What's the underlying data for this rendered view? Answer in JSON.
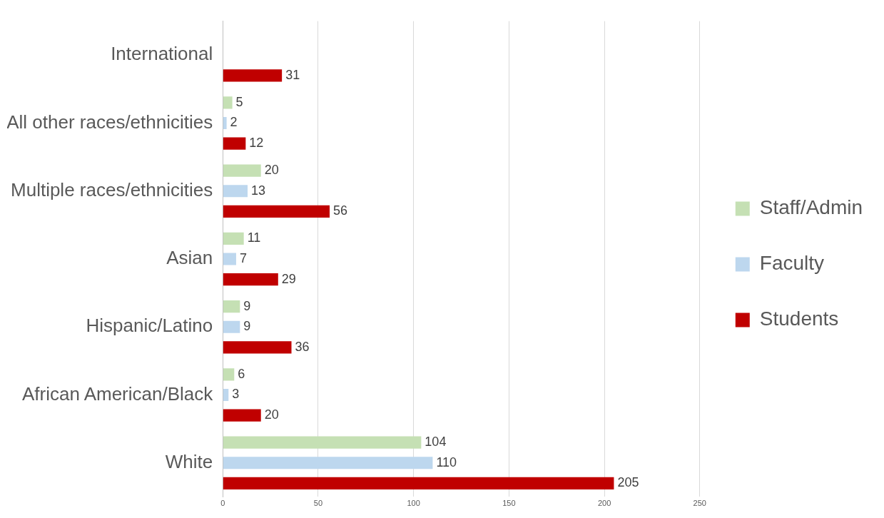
{
  "chart_data": {
    "type": "bar",
    "orientation": "horizontal",
    "categories": [
      "International",
      "All other races/ethnicities",
      "Multiple races/ethnicities",
      "Asian",
      "Hispanic/Latino",
      "African American/Black",
      "White"
    ],
    "series": [
      {
        "name": "Staff/Admin",
        "color": "#c5e0b4",
        "values": [
          null,
          5,
          20,
          11,
          9,
          6,
          104
        ]
      },
      {
        "name": "Faculty",
        "color": "#bdd7ee",
        "values": [
          null,
          2,
          13,
          7,
          9,
          3,
          110
        ]
      },
      {
        "name": "Students",
        "color": "#c00000",
        "values": [
          31,
          12,
          56,
          29,
          36,
          20,
          205
        ]
      }
    ],
    "xlim": [
      0,
      250
    ],
    "xticks": [
      0,
      50,
      100,
      150,
      200,
      250
    ],
    "grid": "x",
    "legend": "right",
    "data_labels": true
  }
}
